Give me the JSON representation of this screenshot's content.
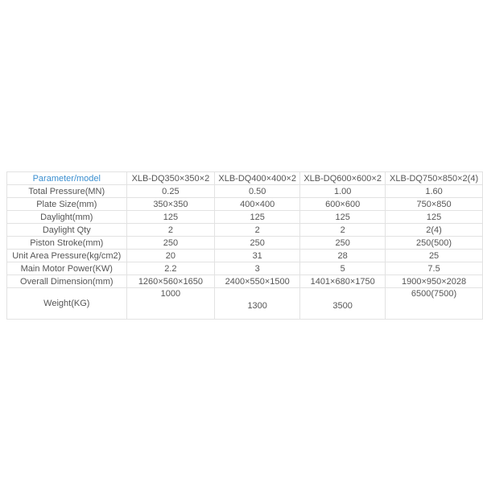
{
  "table": {
    "header": [
      "Parameter/model",
      "XLB-DQ350×350×2",
      "XLB-DQ400×400×2",
      "XLB-DQ600×600×2",
      "XLB-DQ750×850×2(4)"
    ],
    "rows": [
      [
        "Total Pressure(MN)",
        "0.25",
        "0.50",
        "1.00",
        "1.60"
      ],
      [
        "Plate Size(mm)",
        "350×350",
        "400×400",
        "600×600",
        "750×850"
      ],
      [
        "Daylight(mm)",
        "125",
        "125",
        "125",
        "125"
      ],
      [
        "Daylight Qty",
        "2",
        "2",
        "2",
        "2(4)"
      ],
      [
        "Piston Stroke(mm)",
        "250",
        "250",
        "250",
        "250(500)"
      ],
      [
        "Unit Area Pressure(kg/cm2)",
        "20",
        "31",
        "28",
        "25"
      ],
      [
        "Main Motor Power(KW)",
        "2.2",
        "3",
        "5",
        "7.5"
      ],
      [
        "Overall Dimension(mm)",
        "1260×560×1650",
        "2400×550×1500",
        "1401×680×1750",
        "1900×950×2028"
      ],
      [
        "Weight(KG)",
        "1000",
        "1300",
        "3500",
        "6500(7500)"
      ]
    ]
  }
}
